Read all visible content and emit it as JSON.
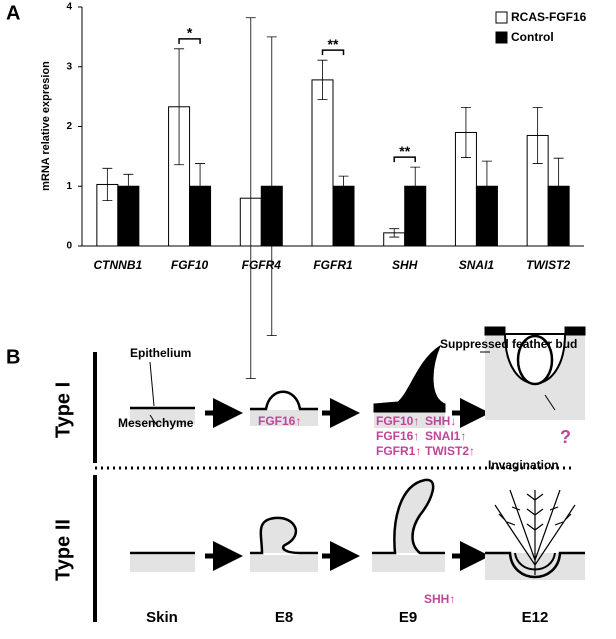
{
  "panel_labels": [
    "A",
    "B"
  ],
  "chart_data": {
    "type": "bar",
    "y_label": "mRNA relative expresion",
    "categories": [
      "CTNNB1",
      "FGF10",
      "FGFR4",
      "FGFR1",
      "SHH",
      "SNAI1",
      "TWIST2"
    ],
    "series": [
      {
        "name": "RCAS-FGF16",
        "color": "#ffffff",
        "values": [
          1.03,
          2.33,
          0.8,
          2.78,
          0.22,
          1.9,
          1.85
        ],
        "errors": [
          0.27,
          0.97,
          3.02,
          0.33,
          0.07,
          0.42,
          0.47
        ]
      },
      {
        "name": "Control",
        "color": "#000000",
        "values": [
          1,
          1,
          1,
          1,
          1,
          1,
          1
        ],
        "errors": [
          0.2,
          0.38,
          2.5,
          0.17,
          0.32,
          0.42,
          0.47
        ]
      }
    ],
    "significance": [
      null,
      "*",
      null,
      "**",
      "**",
      null,
      null
    ],
    "ylim": [
      0,
      4
    ],
    "yticks": [
      0,
      1,
      2,
      3,
      4
    ],
    "legend": "top-right"
  },
  "diagram": {
    "rows": [
      "Type I",
      "Type II"
    ],
    "stages": [
      "Skin",
      "E8",
      "E9",
      "E12"
    ],
    "labels": {
      "epithelium": "Epithelium",
      "mesenchyme": "Mesenchyme",
      "suppressed": "Suppressed feather bud",
      "invagination": "Invagination",
      "question": "?"
    },
    "type1_e8": [
      "FGF16↑"
    ],
    "type1_e9": [
      "FGF10↑",
      "SHH↓",
      "FGF16↑",
      "SNAI1↑",
      "FGFR1↑",
      "TWIST2↑"
    ],
    "type2_e9": [
      "SHH↑"
    ]
  }
}
